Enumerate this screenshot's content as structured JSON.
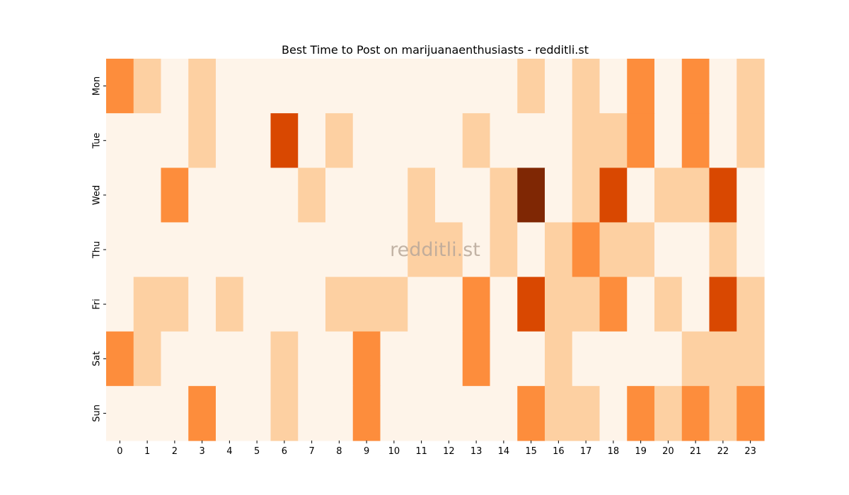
{
  "chart_data": {
    "type": "heatmap",
    "title": "Best Time to Post on marijuanaenthusiasts - redditli.st",
    "watermark": "redditli.st",
    "x_categories": [
      "0",
      "1",
      "2",
      "3",
      "4",
      "5",
      "6",
      "7",
      "8",
      "9",
      "10",
      "11",
      "12",
      "13",
      "14",
      "15",
      "16",
      "17",
      "18",
      "19",
      "20",
      "21",
      "22",
      "23"
    ],
    "y_categories": [
      "Mon",
      "Tue",
      "Wed",
      "Thu",
      "Fri",
      "Sat",
      "Sun"
    ],
    "values": [
      [
        2,
        1,
        0,
        1,
        0,
        0,
        0,
        0,
        0,
        0,
        0,
        0,
        0,
        0,
        0,
        1,
        0,
        1,
        0,
        2,
        0,
        2,
        0,
        1
      ],
      [
        0,
        0,
        0,
        1,
        0,
        0,
        3,
        0,
        1,
        0,
        0,
        0,
        0,
        1,
        0,
        0,
        0,
        1,
        1,
        2,
        0,
        2,
        0,
        1
      ],
      [
        0,
        0,
        2,
        0,
        0,
        0,
        0,
        1,
        0,
        0,
        0,
        1,
        0,
        0,
        1,
        4,
        0,
        1,
        3,
        0,
        1,
        1,
        3,
        0
      ],
      [
        0,
        0,
        0,
        0,
        0,
        0,
        0,
        0,
        0,
        0,
        0,
        1,
        1,
        0,
        1,
        0,
        1,
        2,
        1,
        1,
        0,
        0,
        1,
        0
      ],
      [
        0,
        1,
        1,
        0,
        1,
        0,
        0,
        0,
        1,
        1,
        1,
        0,
        0,
        2,
        0,
        3,
        1,
        1,
        2,
        0,
        1,
        0,
        3,
        1
      ],
      [
        2,
        1,
        0,
        0,
        0,
        0,
        1,
        0,
        0,
        2,
        0,
        0,
        0,
        2,
        0,
        0,
        1,
        0,
        0,
        0,
        0,
        1,
        1,
        1
      ],
      [
        0,
        0,
        0,
        2,
        0,
        0,
        1,
        0,
        0,
        2,
        0,
        0,
        0,
        0,
        0,
        2,
        1,
        1,
        0,
        2,
        1,
        2,
        1,
        2
      ]
    ],
    "color_scale": [
      "#fef4e9",
      "#fdd0a2",
      "#fd8d3c",
      "#d94801",
      "#7f2704"
    ],
    "colorbar": false,
    "grid": false
  }
}
